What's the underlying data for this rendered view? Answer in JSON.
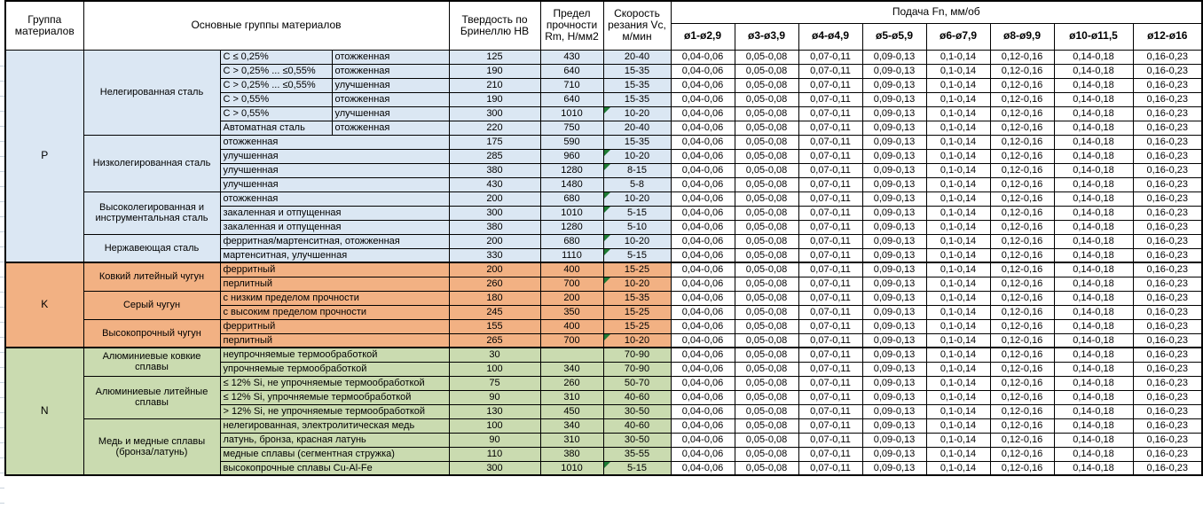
{
  "header": {
    "group_col": "Группа материалов",
    "materials_col": "Основные группы материалов",
    "hardness_col": "Твердость по Бринеллю HB",
    "strength_col": "Предел прочности Rm, Н/мм2",
    "speed_col": "Скорость резания Vc, м/мин",
    "feed_title": "Подача Fn, мм/об",
    "feed_cols": [
      "ø1-ø2,9",
      "ø3-ø3,9",
      "ø4-ø4,9",
      "ø5-ø5,9",
      "ø6-ø7,9",
      "ø8-ø9,9",
      "ø10-ø11,5",
      "ø12-ø16"
    ]
  },
  "feed_values": [
    "0,04-0,06",
    "0,05-0,08",
    "0,07-0,11",
    "0,09-0,13",
    "0,1-0,14",
    "0,12-0,16",
    "0,14-0,18",
    "0,16-0,23"
  ],
  "colors": {
    "p_bg": "#dbe7f3",
    "k_bg": "#f2b183",
    "n_bg": "#cadbb0",
    "marker_green": "#1e7b34",
    "grid": "#000000"
  },
  "groups": [
    {
      "code": "P",
      "bg": "#dbe7f3",
      "blocks": [
        {
          "name": "Нелегированная сталь",
          "split": true,
          "rows": [
            {
              "sub1": "C ≤ 0,25%",
              "sub2": "отожженная",
              "hb": "125",
              "rm": "430",
              "vc": "20-40",
              "marker": false
            },
            {
              "sub1": "C > 0,25% ... ≤0,55%",
              "sub2": "отожженная",
              "hb": "190",
              "rm": "640",
              "vc": "15-35",
              "marker": false
            },
            {
              "sub1": "C > 0,25% ... ≤0,55%",
              "sub2": "улучшенная",
              "hb": "210",
              "rm": "710",
              "vc": "15-35",
              "marker": false
            },
            {
              "sub1": "C > 0,55%",
              "sub2": "отожженная",
              "hb": "190",
              "rm": "640",
              "vc": "15-35",
              "marker": false
            },
            {
              "sub1": "C > 0,55%",
              "sub2": "улучшенная",
              "hb": "300",
              "rm": "1010",
              "vc": "10-20",
              "marker": true
            },
            {
              "sub1": "Автоматная сталь",
              "sub2": "отожженная",
              "hb": "220",
              "rm": "750",
              "vc": "20-40",
              "marker": false
            }
          ]
        },
        {
          "name": "Низколегированная сталь",
          "split": false,
          "rows": [
            {
              "desc": "отожженная",
              "hb": "175",
              "rm": "590",
              "vc": "15-35",
              "marker": false
            },
            {
              "desc": "улучшенная",
              "hb": "285",
              "rm": "960",
              "vc": "10-20",
              "marker": true
            },
            {
              "desc": "улучшенная",
              "hb": "380",
              "rm": "1280",
              "vc": "8-15",
              "marker": true
            },
            {
              "desc": "улучшенная",
              "hb": "430",
              "rm": "1480",
              "vc": "5-8",
              "marker": false
            }
          ]
        },
        {
          "name": "Высоколегированная и инструментальная сталь",
          "split": false,
          "rows": [
            {
              "desc": "отожженная",
              "hb": "200",
              "rm": "680",
              "vc": "10-20",
              "marker": true
            },
            {
              "desc": "закаленная и отпущенная",
              "hb": "300",
              "rm": "1010",
              "vc": "5-15",
              "marker": true
            },
            {
              "desc": "закаленная и отпущенная",
              "hb": "380",
              "rm": "1280",
              "vc": "5-10",
              "marker": false
            }
          ]
        },
        {
          "name": "Нержавеющая сталь",
          "split": false,
          "rows": [
            {
              "desc": "ферритная/мартенситная, отожженная",
              "hb": "200",
              "rm": "680",
              "vc": "10-20",
              "marker": true
            },
            {
              "desc": "мартенситная, улучшенная",
              "hb": "330",
              "rm": "1110",
              "vc": "5-15",
              "marker": true
            }
          ]
        }
      ]
    },
    {
      "code": "K",
      "bg": "#f2b183",
      "blocks": [
        {
          "name": "Ковкий литейный чугун",
          "split": false,
          "rows": [
            {
              "desc": "ферритный",
              "hb": "200",
              "rm": "400",
              "vc": "15-25",
              "marker": false
            },
            {
              "desc": "перлитный",
              "hb": "260",
              "rm": "700",
              "vc": "10-20",
              "marker": true
            }
          ]
        },
        {
          "name": "Серый чугун",
          "split": false,
          "rows": [
            {
              "desc": "с низким пределом прочности",
              "hb": "180",
              "rm": "200",
              "vc": "15-35",
              "marker": false
            },
            {
              "desc": "с высоким пределом прочности",
              "hb": "245",
              "rm": "350",
              "vc": "15-25",
              "marker": false
            }
          ]
        },
        {
          "name": "Высокопрочный чугун",
          "split": false,
          "rows": [
            {
              "desc": "ферритный",
              "hb": "155",
              "rm": "400",
              "vc": "15-25",
              "marker": false
            },
            {
              "desc": "перлитный",
              "hb": "265",
              "rm": "700",
              "vc": "10-20",
              "marker": true
            }
          ]
        }
      ]
    },
    {
      "code": "N",
      "bg": "#cadbb0",
      "blocks": [
        {
          "name": "Алюминиевые ковкие сплавы",
          "split": false,
          "rows": [
            {
              "desc": "неупрочняемые термообработкой",
              "hb": "30",
              "rm": "",
              "vc": "70-90",
              "marker": false
            },
            {
              "desc": "упрочняемые термообработкой",
              "hb": "100",
              "rm": "340",
              "vc": "70-90",
              "marker": false
            }
          ]
        },
        {
          "name": "Алюминиевые литейные сплавы",
          "split": false,
          "rows": [
            {
              "desc": "≤ 12% Si, не упрочняемые термообработкой",
              "hb": "75",
              "rm": "260",
              "vc": "50-70",
              "marker": false
            },
            {
              "desc": "≤ 12% Si, упрочняемые термообработкой",
              "hb": "90",
              "rm": "310",
              "vc": "40-60",
              "marker": false
            },
            {
              "desc": "> 12% Si, не упрочняемые термообработкой",
              "hb": "130",
              "rm": "450",
              "vc": "30-50",
              "marker": false
            }
          ]
        },
        {
          "name": "Медь и медные сплавы (бронза/латунь)",
          "split": false,
          "rows": [
            {
              "desc": "нелегированная, электролитическая медь",
              "hb": "100",
              "rm": "340",
              "vc": "40-60",
              "marker": false
            },
            {
              "desc": "латунь, бронза, красная латунь",
              "hb": "90",
              "rm": "310",
              "vc": "30-50",
              "marker": false
            },
            {
              "desc": "медные сплавы (сегментная стружка)",
              "hb": "110",
              "rm": "380",
              "vc": "35-55",
              "marker": false
            },
            {
              "desc": "высокопрочные сплавы Cu-Al-Fe",
              "hb": "300",
              "rm": "1010",
              "vc": "5-15",
              "marker": true
            }
          ]
        }
      ]
    }
  ]
}
